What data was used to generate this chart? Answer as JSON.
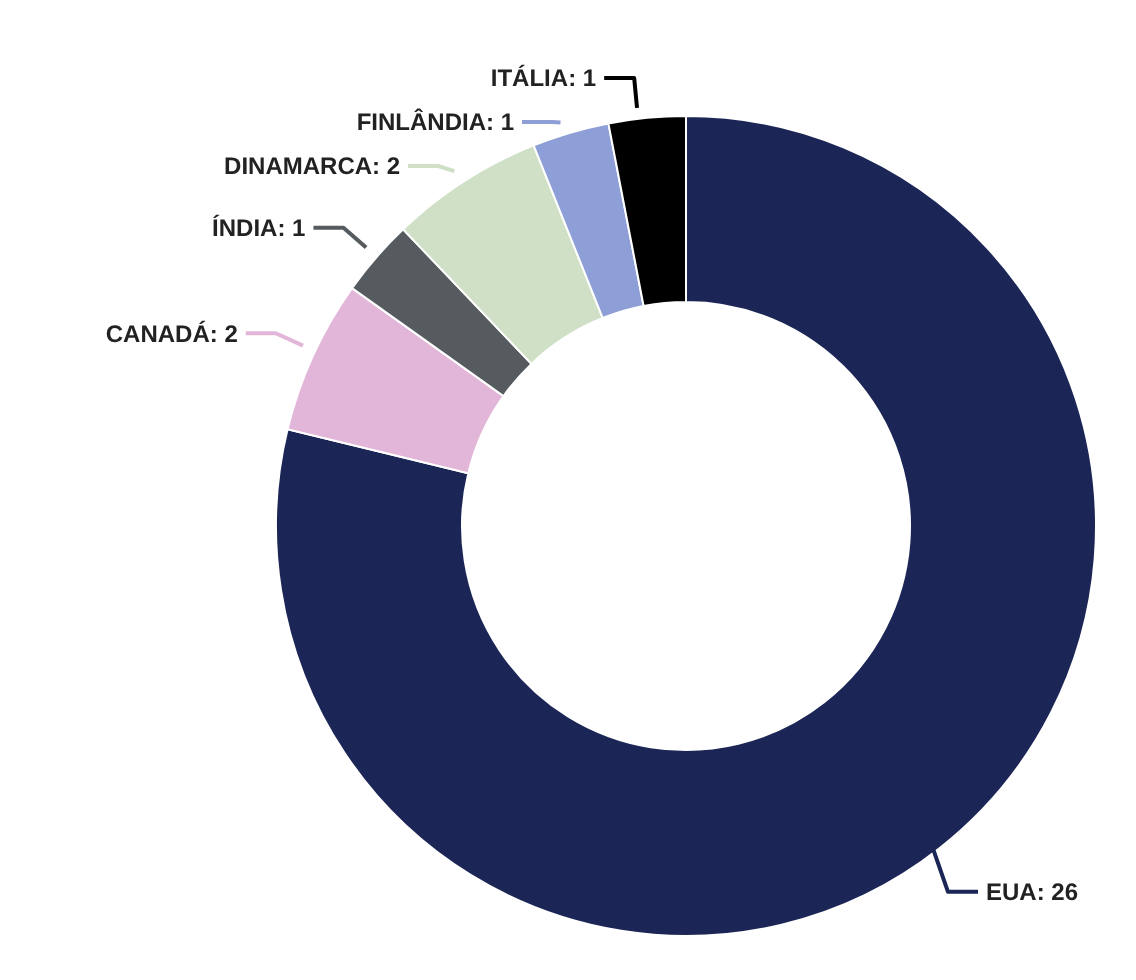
{
  "chart_data": {
    "type": "donut",
    "categories": [
      "EUA",
      "CANADÁ",
      "ÍNDIA",
      "DINAMARCA",
      "FINLÂNDIA",
      "ITÁLIA"
    ],
    "values": [
      26,
      2,
      1,
      2,
      1,
      1
    ],
    "colors": [
      "#1b2556",
      "#e2b6d8",
      "#555b5e",
      "#cfe0c6",
      "#8e9ed6",
      "#000000"
    ],
    "value_labels": [
      ": 26",
      ": 2",
      ": 1",
      ": 2",
      ": 1",
      ": 1"
    ],
    "legend": false
  }
}
